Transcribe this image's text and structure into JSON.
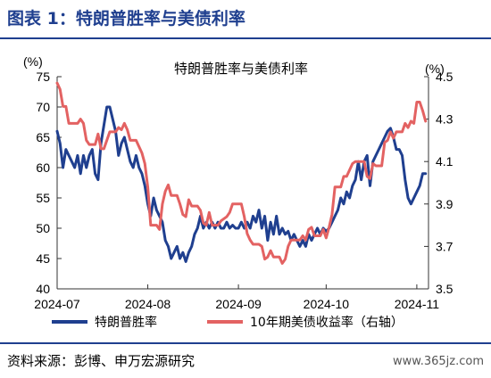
{
  "figure": {
    "title": "图表 1：特朗普胜率与美债利率",
    "source": "资料来源：彭博、申万宏源研究",
    "watermark": "www.365jz.com"
  },
  "chart_data": {
    "type": "line",
    "title": "特朗普胜率与美债利率",
    "y_unit_left": "(%)",
    "y_unit_right": "(%)",
    "ylim_left": [
      40,
      75
    ],
    "yticks_left": [
      40,
      45,
      50,
      55,
      60,
      65,
      70,
      75
    ],
    "ylim_right": [
      3.5,
      4.5
    ],
    "yticks_right": [
      3.5,
      3.7,
      3.9,
      4.1,
      4.3,
      4.5
    ],
    "xlim": [
      "2024-07-01",
      "2024-11-05"
    ],
    "xticks": [
      "2024-07",
      "2024-08",
      "2024-09",
      "2024-10",
      "2024-11"
    ],
    "legend_position": "bottom",
    "colors": {
      "trump": "#1f3f8f",
      "yield": "#e36262",
      "axis": "#333333"
    },
    "series": [
      {
        "name": "特朗普胜率",
        "axis": "left",
        "points": [
          [
            "2024-07-01",
            66
          ],
          [
            "2024-07-02",
            64
          ],
          [
            "2024-07-03",
            60
          ],
          [
            "2024-07-04",
            63
          ],
          [
            "2024-07-05",
            62
          ],
          [
            "2024-07-06",
            61
          ],
          [
            "2024-07-07",
            60
          ],
          [
            "2024-07-08",
            62
          ],
          [
            "2024-07-09",
            59
          ],
          [
            "2024-07-10",
            62
          ],
          [
            "2024-07-11",
            60
          ],
          [
            "2024-07-12",
            62
          ],
          [
            "2024-07-13",
            63
          ],
          [
            "2024-07-14",
            59
          ],
          [
            "2024-07-15",
            58
          ],
          [
            "2024-07-16",
            64
          ],
          [
            "2024-07-17",
            67
          ],
          [
            "2024-07-18",
            70
          ],
          [
            "2024-07-19",
            70
          ],
          [
            "2024-07-20",
            68
          ],
          [
            "2024-07-21",
            66
          ],
          [
            "2024-07-22",
            62
          ],
          [
            "2024-07-23",
            64
          ],
          [
            "2024-07-24",
            65
          ],
          [
            "2024-07-25",
            63
          ],
          [
            "2024-07-26",
            61
          ],
          [
            "2024-07-27",
            60
          ],
          [
            "2024-07-28",
            62
          ],
          [
            "2024-07-29",
            60
          ],
          [
            "2024-07-30",
            59
          ],
          [
            "2024-07-31",
            57
          ],
          [
            "2024-08-01",
            54
          ],
          [
            "2024-08-02",
            52
          ],
          [
            "2024-08-03",
            55
          ],
          [
            "2024-08-04",
            53
          ],
          [
            "2024-08-05",
            52
          ],
          [
            "2024-08-06",
            51
          ],
          [
            "2024-08-07",
            48
          ],
          [
            "2024-08-08",
            47
          ],
          [
            "2024-08-09",
            45
          ],
          [
            "2024-08-10",
            46
          ],
          [
            "2024-08-11",
            47
          ],
          [
            "2024-08-12",
            45
          ],
          [
            "2024-08-13",
            46
          ],
          [
            "2024-08-14",
            44.5
          ],
          [
            "2024-08-15",
            46
          ],
          [
            "2024-08-16",
            47
          ],
          [
            "2024-08-17",
            49
          ],
          [
            "2024-08-18",
            50
          ],
          [
            "2024-08-19",
            52
          ],
          [
            "2024-08-20",
            50
          ],
          [
            "2024-08-21",
            51
          ],
          [
            "2024-08-22",
            50
          ],
          [
            "2024-08-23",
            51
          ],
          [
            "2024-08-24",
            50
          ],
          [
            "2024-08-25",
            51
          ],
          [
            "2024-08-26",
            50
          ],
          [
            "2024-08-27",
            50
          ],
          [
            "2024-08-28",
            51
          ],
          [
            "2024-08-29",
            50
          ],
          [
            "2024-08-30",
            50.5
          ],
          [
            "2024-08-31",
            50
          ],
          [
            "2024-09-01",
            50
          ],
          [
            "2024-09-02",
            51
          ],
          [
            "2024-09-03",
            50
          ],
          [
            "2024-09-04",
            51
          ],
          [
            "2024-09-05",
            50
          ],
          [
            "2024-09-06",
            52
          ],
          [
            "2024-09-07",
            51
          ],
          [
            "2024-09-08",
            53
          ],
          [
            "2024-09-09",
            50
          ],
          [
            "2024-09-10",
            52
          ],
          [
            "2024-09-11",
            48
          ],
          [
            "2024-09-12",
            51
          ],
          [
            "2024-09-13",
            49
          ],
          [
            "2024-09-14",
            52
          ],
          [
            "2024-09-15",
            49
          ],
          [
            "2024-09-16",
            50
          ],
          [
            "2024-09-17",
            49
          ],
          [
            "2024-09-18",
            49.5
          ],
          [
            "2024-09-19",
            48
          ],
          [
            "2024-09-20",
            49
          ],
          [
            "2024-09-21",
            48
          ],
          [
            "2024-09-22",
            47
          ],
          [
            "2024-09-23",
            48
          ],
          [
            "2024-09-24",
            47
          ],
          [
            "2024-09-25",
            49
          ],
          [
            "2024-09-26",
            48
          ],
          [
            "2024-09-27",
            49
          ],
          [
            "2024-09-28",
            50
          ],
          [
            "2024-09-29",
            49
          ],
          [
            "2024-09-30",
            50
          ],
          [
            "2024-10-01",
            49.5
          ],
          [
            "2024-10-02",
            50
          ],
          [
            "2024-10-03",
            51
          ],
          [
            "2024-10-04",
            52
          ],
          [
            "2024-10-05",
            53
          ],
          [
            "2024-10-06",
            55
          ],
          [
            "2024-10-07",
            54
          ],
          [
            "2024-10-08",
            56
          ],
          [
            "2024-10-09",
            55
          ],
          [
            "2024-10-10",
            57
          ],
          [
            "2024-10-11",
            58
          ],
          [
            "2024-10-12",
            61
          ],
          [
            "2024-10-13",
            58
          ],
          [
            "2024-10-14",
            61
          ],
          [
            "2024-10-15",
            62
          ],
          [
            "2024-10-16",
            57
          ],
          [
            "2024-10-17",
            61
          ],
          [
            "2024-10-18",
            62
          ],
          [
            "2024-10-19",
            63
          ],
          [
            "2024-10-20",
            64
          ],
          [
            "2024-10-21",
            65
          ],
          [
            "2024-10-22",
            66
          ],
          [
            "2024-10-23",
            66.5
          ],
          [
            "2024-10-24",
            65
          ],
          [
            "2024-10-25",
            63
          ],
          [
            "2024-10-26",
            63
          ],
          [
            "2024-10-27",
            62
          ],
          [
            "2024-10-28",
            58
          ],
          [
            "2024-10-29",
            55
          ],
          [
            "2024-10-30",
            54
          ],
          [
            "2024-10-31",
            55
          ],
          [
            "2024-11-01",
            56
          ],
          [
            "2024-11-02",
            57
          ],
          [
            "2024-11-03",
            59
          ],
          [
            "2024-11-04",
            59
          ]
        ]
      },
      {
        "name": "10年期美债收益率（右轴）",
        "axis": "right",
        "points": [
          [
            "2024-07-01",
            4.47
          ],
          [
            "2024-07-02",
            4.44
          ],
          [
            "2024-07-03",
            4.36
          ],
          [
            "2024-07-04",
            4.36
          ],
          [
            "2024-07-05",
            4.28
          ],
          [
            "2024-07-06",
            4.28
          ],
          [
            "2024-07-07",
            4.28
          ],
          [
            "2024-07-08",
            4.28
          ],
          [
            "2024-07-09",
            4.3
          ],
          [
            "2024-07-10",
            4.28
          ],
          [
            "2024-07-11",
            4.2
          ],
          [
            "2024-07-12",
            4.18
          ],
          [
            "2024-07-13",
            4.18
          ],
          [
            "2024-07-14",
            4.18
          ],
          [
            "2024-07-15",
            4.23
          ],
          [
            "2024-07-16",
            4.16
          ],
          [
            "2024-07-17",
            4.16
          ],
          [
            "2024-07-18",
            4.2
          ],
          [
            "2024-07-19",
            4.24
          ],
          [
            "2024-07-20",
            4.24
          ],
          [
            "2024-07-21",
            4.24
          ],
          [
            "2024-07-22",
            4.26
          ],
          [
            "2024-07-23",
            4.25
          ],
          [
            "2024-07-24",
            4.28
          ],
          [
            "2024-07-25",
            4.25
          ],
          [
            "2024-07-26",
            4.2
          ],
          [
            "2024-07-27",
            4.2
          ],
          [
            "2024-07-28",
            4.2
          ],
          [
            "2024-07-29",
            4.17
          ],
          [
            "2024-07-30",
            4.14
          ],
          [
            "2024-07-31",
            4.09
          ],
          [
            "2024-08-01",
            3.98
          ],
          [
            "2024-08-02",
            3.8
          ],
          [
            "2024-08-03",
            3.8
          ],
          [
            "2024-08-04",
            3.8
          ],
          [
            "2024-08-05",
            3.78
          ],
          [
            "2024-08-06",
            3.9
          ],
          [
            "2024-08-07",
            3.96
          ],
          [
            "2024-08-08",
            3.99
          ],
          [
            "2024-08-09",
            3.94
          ],
          [
            "2024-08-10",
            3.94
          ],
          [
            "2024-08-11",
            3.94
          ],
          [
            "2024-08-12",
            3.9
          ],
          [
            "2024-08-13",
            3.85
          ],
          [
            "2024-08-14",
            3.84
          ],
          [
            "2024-08-15",
            3.92
          ],
          [
            "2024-08-16",
            3.89
          ],
          [
            "2024-08-17",
            3.89
          ],
          [
            "2024-08-18",
            3.89
          ],
          [
            "2024-08-19",
            3.87
          ],
          [
            "2024-08-20",
            3.81
          ],
          [
            "2024-08-21",
            3.8
          ],
          [
            "2024-08-22",
            3.86
          ],
          [
            "2024-08-23",
            3.8
          ],
          [
            "2024-08-24",
            3.8
          ],
          [
            "2024-08-25",
            3.8
          ],
          [
            "2024-08-26",
            3.82
          ],
          [
            "2024-08-27",
            3.83
          ],
          [
            "2024-08-28",
            3.84
          ],
          [
            "2024-08-29",
            3.86
          ],
          [
            "2024-08-30",
            3.9
          ],
          [
            "2024-08-31",
            3.9
          ],
          [
            "2024-09-01",
            3.9
          ],
          [
            "2024-09-02",
            3.9
          ],
          [
            "2024-09-03",
            3.84
          ],
          [
            "2024-09-04",
            3.76
          ],
          [
            "2024-09-05",
            3.73
          ],
          [
            "2024-09-06",
            3.71
          ],
          [
            "2024-09-07",
            3.71
          ],
          [
            "2024-09-08",
            3.71
          ],
          [
            "2024-09-09",
            3.7
          ],
          [
            "2024-09-10",
            3.64
          ],
          [
            "2024-09-11",
            3.65
          ],
          [
            "2024-09-12",
            3.68
          ],
          [
            "2024-09-13",
            3.65
          ],
          [
            "2024-09-14",
            3.65
          ],
          [
            "2024-09-15",
            3.65
          ],
          [
            "2024-09-16",
            3.62
          ],
          [
            "2024-09-17",
            3.64
          ],
          [
            "2024-09-18",
            3.7
          ],
          [
            "2024-09-19",
            3.73
          ],
          [
            "2024-09-20",
            3.73
          ],
          [
            "2024-09-21",
            3.73
          ],
          [
            "2024-09-22",
            3.73
          ],
          [
            "2024-09-23",
            3.75
          ],
          [
            "2024-09-24",
            3.73
          ],
          [
            "2024-09-25",
            3.78
          ],
          [
            "2024-09-26",
            3.79
          ],
          [
            "2024-09-27",
            3.75
          ],
          [
            "2024-09-28",
            3.75
          ],
          [
            "2024-09-29",
            3.75
          ],
          [
            "2024-09-30",
            3.78
          ],
          [
            "2024-10-01",
            3.74
          ],
          [
            "2024-10-02",
            3.79
          ],
          [
            "2024-10-03",
            3.85
          ],
          [
            "2024-10-04",
            3.98
          ],
          [
            "2024-10-05",
            3.98
          ],
          [
            "2024-10-06",
            3.98
          ],
          [
            "2024-10-07",
            4.03
          ],
          [
            "2024-10-08",
            4.03
          ],
          [
            "2024-10-09",
            4.06
          ],
          [
            "2024-10-10",
            4.09
          ],
          [
            "2024-10-11",
            4.1
          ],
          [
            "2024-10-12",
            4.1
          ],
          [
            "2024-10-13",
            4.1
          ],
          [
            "2024-10-14",
            4.1
          ],
          [
            "2024-10-15",
            4.03
          ],
          [
            "2024-10-16",
            4.02
          ],
          [
            "2024-10-17",
            4.09
          ],
          [
            "2024-10-18",
            4.08
          ],
          [
            "2024-10-19",
            4.08
          ],
          [
            "2024-10-20",
            4.08
          ],
          [
            "2024-10-21",
            4.19
          ],
          [
            "2024-10-22",
            4.2
          ],
          [
            "2024-10-23",
            4.24
          ],
          [
            "2024-10-24",
            4.21
          ],
          [
            "2024-10-25",
            4.24
          ],
          [
            "2024-10-26",
            4.24
          ],
          [
            "2024-10-27",
            4.24
          ],
          [
            "2024-10-28",
            4.28
          ],
          [
            "2024-10-29",
            4.26
          ],
          [
            "2024-10-30",
            4.29
          ],
          [
            "2024-10-31",
            4.28
          ],
          [
            "2024-11-01",
            4.38
          ],
          [
            "2024-11-02",
            4.38
          ],
          [
            "2024-11-03",
            4.34
          ],
          [
            "2024-11-04",
            4.29
          ]
        ]
      }
    ]
  }
}
